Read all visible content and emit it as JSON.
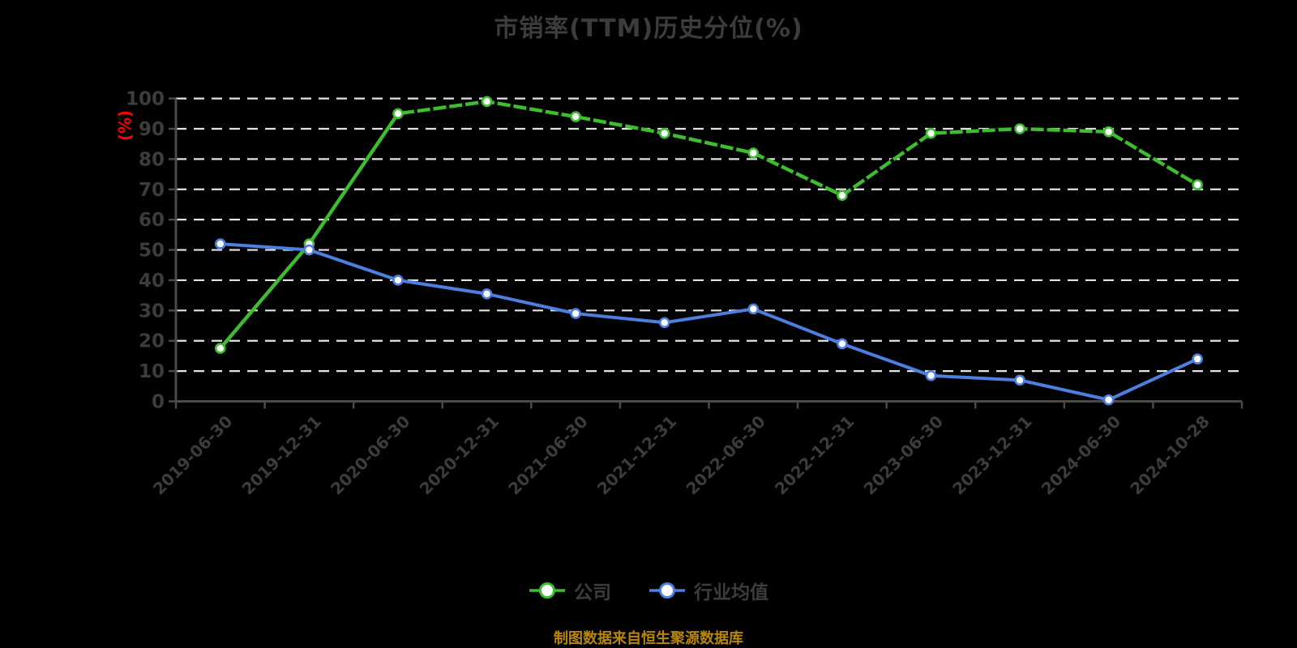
{
  "title": "市销率(TTM)历史分位(%)",
  "footer": "制图数据来自恒生聚源数据库",
  "legend": [
    {
      "label": "公司",
      "color": "#3CBE2E"
    },
    {
      "label": "行业均值",
      "color": "#4D7FE0"
    }
  ],
  "style": {
    "background": "#000000",
    "title_color": "#3C3C3C",
    "label_color": "#3C3C3C",
    "axis_color": "#4A4A4A",
    "grid_color": "#E3E3E3",
    "ylabel_color": "#FF0000",
    "footer_color": "#B8860B",
    "marker_fill": "#FFFFFF"
  },
  "chart_data": {
    "type": "line",
    "title": "市销率(TTM)历史分位(%)",
    "xlabel": "",
    "ylabel": "(%)",
    "ylim": [
      0,
      100
    ],
    "ytick_step": 10,
    "grid": "horizontal-dashed",
    "legend_position": "bottom",
    "categories": [
      "2019-06-30",
      "2019-12-31",
      "2020-06-30",
      "2020-12-31",
      "2021-06-30",
      "2021-12-31",
      "2022-06-30",
      "2022-12-31",
      "2023-06-30",
      "2023-12-31",
      "2024-06-30",
      "2024-10-28"
    ],
    "series": [
      {
        "name": "公司",
        "color": "#3CBE2E",
        "marker_fill": "#FFFFFF",
        "values": [
          17.5,
          52,
          95,
          99,
          94,
          88.5,
          82,
          68,
          88.5,
          90,
          89,
          71.5
        ],
        "width": 4.4,
        "overlay": {
          "color": "#000000",
          "from": 2,
          "to": 11,
          "dash": "4 16"
        }
      },
      {
        "name": "行业均值",
        "color": "#4D7FE0",
        "marker_fill": "#FFFFFF",
        "values": [
          52,
          50,
          40,
          35.5,
          29,
          26,
          30.5,
          19,
          8.5,
          7,
          0.5,
          14
        ],
        "width": 4.0
      }
    ]
  }
}
